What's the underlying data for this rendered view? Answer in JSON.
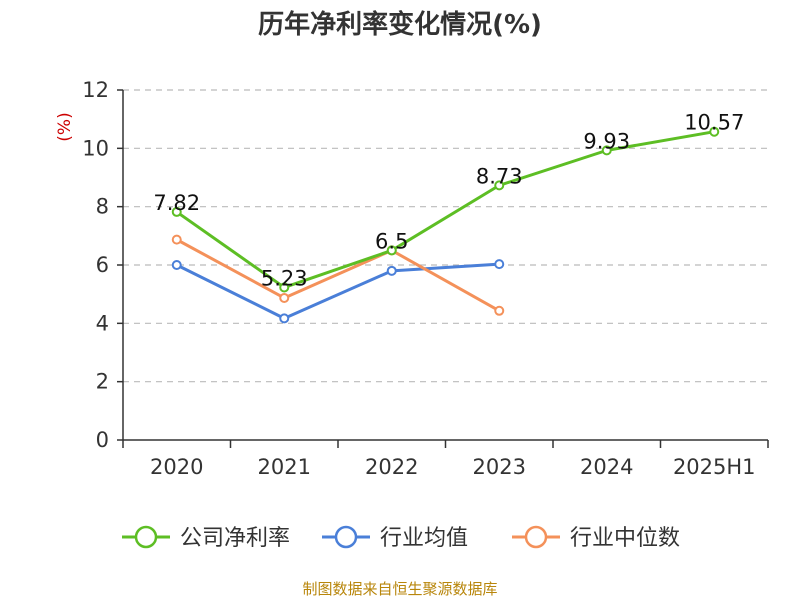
{
  "chart_data": {
    "type": "line",
    "title": "历年净利率变化情况(%)",
    "ylabel": "(%)",
    "xlabel": "",
    "categories": [
      "2020",
      "2021",
      "2022",
      "2023",
      "2024",
      "2025H1"
    ],
    "ylim": [
      0,
      12
    ],
    "yticks": [
      0,
      2,
      4,
      6,
      8,
      10,
      12
    ],
    "grid": true,
    "legend_position": "bottom",
    "series": [
      {
        "name": "公司净利率",
        "color": "#5dbe24",
        "values": [
          7.82,
          5.23,
          6.5,
          8.73,
          9.93,
          10.57
        ],
        "show_labels": true
      },
      {
        "name": "行业均值",
        "color": "#4a7fd8",
        "values": [
          6.0,
          4.17,
          5.8,
          6.03,
          null,
          null
        ],
        "show_labels": false
      },
      {
        "name": "行业中位数",
        "color": "#f4915a",
        "values": [
          6.87,
          4.87,
          6.5,
          4.43,
          null,
          null
        ],
        "show_labels": false
      }
    ]
  },
  "colors": {
    "title": "#333333",
    "unit": "#cc0000",
    "grid": "#bbbbbb",
    "axis": "#333333",
    "footer": "#b8860b"
  },
  "footer": "制图数据来自恒生聚源数据库"
}
